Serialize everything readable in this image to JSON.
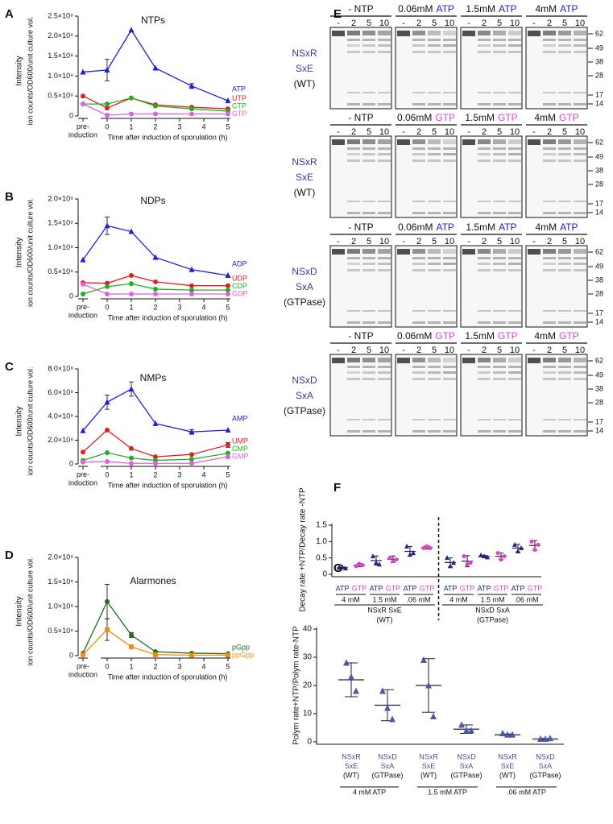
{
  "chart_data": [
    {
      "type": "line",
      "panel_label": "A",
      "title": "NTPs",
      "ylabel": [
        "Intensity",
        "ion counts/OD600/unit culture vol."
      ],
      "xlabel": "Time after induction of sporulation (h)",
      "x": [
        -1,
        0,
        1,
        2,
        3.5,
        5
      ],
      "xlim": [
        -1,
        5
      ],
      "xticks": [
        {
          "value": -1,
          "label": "pre-\ninduction"
        },
        0,
        1,
        2,
        3,
        4,
        5
      ],
      "ylim": [
        0,
        2500000000
      ],
      "yticks": [
        0,
        {
          "value": 500000000,
          "label": "0.5×10⁹"
        },
        {
          "value": 1000000000,
          "label": "1.0×10⁹"
        },
        {
          "value": 1500000000,
          "label": "1.5×10⁹"
        },
        {
          "value": 2000000000,
          "label": "2.0×10⁹"
        },
        {
          "value": 2500000000,
          "label": "2.5×10⁹"
        }
      ],
      "series": [
        {
          "name": "ATP",
          "color": "#1f1fe0",
          "marker": "triangle",
          "values": [
            1100000000,
            1150000000,
            2150000000,
            1200000000,
            750000000,
            380000000
          ],
          "errors": [
            null,
            270000000,
            null,
            null,
            60000000,
            null
          ]
        },
        {
          "name": "UTP",
          "color": "#e02020",
          "marker": "circle",
          "values": [
            500000000,
            200000000,
            450000000,
            280000000,
            220000000,
            180000000
          ]
        },
        {
          "name": "CTP",
          "color": "#22b022",
          "marker": "circle",
          "values": [
            300000000,
            300000000,
            450000000,
            250000000,
            180000000,
            120000000
          ]
        },
        {
          "name": "GTP",
          "color": "#e060e0",
          "marker": "circle",
          "values": [
            300000000,
            20000000,
            50000000,
            50000000,
            50000000,
            50000000
          ]
        }
      ]
    },
    {
      "type": "line",
      "panel_label": "B",
      "title": "NDPs",
      "ylabel": [
        "Intensity",
        "ion counts/OD600/unit culture vol."
      ],
      "xlabel": "Time after induction of sporulation (h)",
      "x": [
        -1,
        0,
        1,
        2,
        3.5,
        5
      ],
      "xlim": [
        -1,
        5
      ],
      "xticks": [
        {
          "value": -1,
          "label": "pre-\ninduction"
        },
        0,
        1,
        2,
        3,
        4,
        5
      ],
      "ylim": [
        0,
        2000000000
      ],
      "yticks": [
        0,
        {
          "value": 500000000,
          "label": "0.5×10⁹"
        },
        {
          "value": 1000000000,
          "label": "1.0×10⁹"
        },
        {
          "value": 1500000000,
          "label": "1.5×10⁹"
        },
        {
          "value": 2000000000,
          "label": "2.0×10⁹"
        }
      ],
      "series": [
        {
          "name": "ADP",
          "color": "#1f1fe0",
          "marker": "triangle",
          "values": [
            750000000,
            1450000000,
            1330000000,
            800000000,
            550000000,
            430000000
          ],
          "errors": [
            null,
            180000000,
            null,
            null,
            null,
            null
          ]
        },
        {
          "name": "UDP",
          "color": "#e02020",
          "marker": "circle",
          "values": [
            280000000,
            270000000,
            430000000,
            300000000,
            220000000,
            220000000
          ]
        },
        {
          "name": "CDP",
          "color": "#22b022",
          "marker": "circle",
          "values": [
            50000000,
            200000000,
            260000000,
            150000000,
            130000000,
            130000000
          ]
        },
        {
          "name": "GDP",
          "color": "#e060e0",
          "marker": "circle",
          "values": [
            250000000,
            50000000,
            50000000,
            50000000,
            50000000,
            50000000
          ]
        }
      ]
    },
    {
      "type": "line",
      "panel_label": "C",
      "title": "NMPs",
      "ylabel": [
        "Intensity",
        "ion counts/OD600/unit culture vol."
      ],
      "xlabel": "Time after induction of sporulation (h)",
      "x": [
        -1,
        0,
        1,
        2,
        3.5,
        5
      ],
      "xlim": [
        -1,
        5
      ],
      "xticks": [
        {
          "value": -1,
          "label": "pre-\ninduction"
        },
        0,
        1,
        2,
        3,
        4,
        5
      ],
      "ylim": [
        0,
        800000000
      ],
      "yticks": [
        0,
        {
          "value": 200000000,
          "label": "2.0×10⁸"
        },
        {
          "value": 400000000,
          "label": "4.0×10⁸"
        },
        {
          "value": 600000000,
          "label": "6.0×10⁸"
        },
        {
          "value": 800000000,
          "label": "8.0×10⁸"
        }
      ],
      "series": [
        {
          "name": "AMP",
          "color": "#1f1fe0",
          "marker": "triangle",
          "values": [
            280000000,
            520000000,
            630000000,
            340000000,
            270000000,
            285000000
          ],
          "errors": [
            null,
            60000000,
            60000000,
            null,
            20000000,
            null
          ]
        },
        {
          "name": "UMP",
          "color": "#e02020",
          "marker": "circle",
          "values": [
            100000000,
            285000000,
            130000000,
            60000000,
            80000000,
            160000000
          ],
          "errors": [
            null,
            null,
            null,
            null,
            null,
            20000000
          ]
        },
        {
          "name": "CMP",
          "color": "#22b022",
          "marker": "circle",
          "values": [
            30000000,
            95000000,
            50000000,
            30000000,
            40000000,
            90000000
          ]
        },
        {
          "name": "GMP",
          "color": "#e060e0",
          "marker": "circle",
          "values": [
            15000000,
            20000000,
            5000000,
            5000000,
            5000000,
            60000000
          ]
        }
      ]
    },
    {
      "type": "line",
      "panel_label": "D",
      "title": "Alarmones",
      "ylabel": [
        "Intensity",
        "ion counts/OD600/unit culture vol."
      ],
      "xlabel": "Time after induction of sporulation (h)",
      "x": [
        -1,
        0,
        1,
        2,
        3.5,
        5
      ],
      "xlim": [
        -1,
        5
      ],
      "xticks": [
        {
          "value": -1,
          "label": "pre-\ninduction"
        },
        0,
        1,
        2,
        3,
        4,
        5
      ],
      "ylim": [
        0,
        200000000
      ],
      "yticks": [
        0,
        {
          "value": 50000000,
          "label": "0.5×10⁸"
        },
        {
          "value": 100000000,
          "label": "1.0×10⁸"
        },
        {
          "value": 150000000,
          "label": "1.5×10⁸"
        },
        {
          "value": 200000000,
          "label": "2.0×10⁸"
        }
      ],
      "series": [
        {
          "name": "pGpp",
          "color": "#1f6b1f",
          "marker": "circle",
          "values": [
            5000000,
            110000000,
            42000000,
            8000000,
            5000000,
            4000000
          ],
          "errors": [
            null,
            35000000,
            5000000,
            null,
            null,
            null
          ]
        },
        {
          "name": "ppGpp",
          "color": "#f08a10",
          "marker": "square",
          "values": [
            2000000,
            53000000,
            18000000,
            2000000,
            1000000,
            1000000
          ],
          "errors": [
            null,
            22000000,
            null,
            null,
            null,
            null
          ]
        }
      ]
    },
    {
      "type": "dot",
      "panel_label": "F",
      "ylabel": "Decay rate +NTP/Decay rate -NTP",
      "ylim": [
        0,
        1.5
      ],
      "yticks": [
        0,
        0.5,
        {
          "value": 1,
          "label": "1.0"
        },
        1.5
      ],
      "categories": [
        "ATP",
        "GTP",
        "ATP",
        "GTP",
        "ATP",
        "GTP",
        "ATP",
        "GTP",
        "ATP",
        "GTP",
        "ATP",
        "GTP"
      ],
      "colors": [
        "#23238f",
        "#e040d0",
        "#23238f",
        "#e040d0",
        "#23238f",
        "#e040d0",
        "#23238f",
        "#e040d0",
        "#23238f",
        "#e040d0",
        "#23238f",
        "#e040d0"
      ],
      "markers": [
        "triangle",
        "circle",
        "triangle",
        "circle",
        "triangle",
        "circle",
        "triangle",
        "circle",
        "triangle",
        "circle",
        "triangle",
        "circle"
      ],
      "sublabels": [
        "4 mM",
        "1.5 mM",
        ".06 mM",
        "4 mM",
        "1.5 mM",
        ".06 mM"
      ],
      "groups": [
        [
          "NSxR SxE",
          "(WT)"
        ],
        [
          "NSxD SxA",
          "(GTPase)"
        ]
      ],
      "divider": true,
      "points": [
        [
          0.2,
          0.22,
          0.18
        ],
        [
          0.25,
          0.32,
          0.28
        ],
        [
          0.55,
          0.35,
          0.3
        ],
        [
          0.5,
          0.4,
          0.45
        ],
        [
          0.85,
          0.6,
          0.65
        ],
        [
          0.8,
          0.85,
          0.8
        ],
        [
          0.5,
          0.25,
          0.35
        ],
        [
          0.55,
          0.3,
          0.35
        ],
        [
          0.58,
          0.55,
          0.52
        ],
        [
          0.65,
          0.45,
          0.55
        ],
        [
          0.9,
          0.7,
          0.8
        ],
        [
          1.0,
          0.75,
          0.9
        ]
      ],
      "means": [
        0.2,
        0.28,
        0.42,
        0.46,
        0.7,
        0.82,
        0.36,
        0.4,
        0.55,
        0.55,
        0.8,
        0.88
      ],
      "sds": [
        0.02,
        0.05,
        0.14,
        0.1,
        0.15,
        0.05,
        0.14,
        0.17,
        0.03,
        0.1,
        0.12,
        0.15
      ]
    },
    {
      "type": "dot",
      "panel_label": "G",
      "ylabel": "Polym rate+NTP/Polym rate-NTP",
      "ylim": [
        0,
        40
      ],
      "yticks": [
        0,
        10,
        20,
        30,
        40
      ],
      "categories": [
        [
          "NSxR",
          "SxE",
          "(WT)"
        ],
        [
          "NSxD",
          "SxA",
          "(GTPase)"
        ],
        [
          "NSxR",
          "SxE",
          "(WT)"
        ],
        [
          "NSxD",
          "SxA",
          "(GTPase)"
        ],
        [
          "NSxR",
          "SxE",
          "(WT)"
        ],
        [
          "NSxD",
          "SxA",
          "(GTPase)"
        ]
      ],
      "color": "#4a5aa8",
      "marker": "triangle",
      "groups": [
        "4 mM ATP",
        "1.5 mM ATP",
        ".06 mM ATP"
      ],
      "points": [
        [
          28,
          23,
          18
        ],
        [
          18,
          12,
          8
        ],
        [
          29,
          20,
          9
        ],
        [
          6,
          4,
          4
        ],
        [
          3,
          2.5,
          2.5
        ],
        [
          1,
          1,
          1.2
        ]
      ],
      "means": [
        22,
        13,
        20,
        4.5,
        2.5,
        1
      ],
      "sds": [
        6,
        5.5,
        9.5,
        1.5,
        0.3,
        0.2
      ]
    }
  ],
  "gel_panel": {
    "panel_label": "E",
    "lanes": [
      "-",
      "2",
      "5",
      "10"
    ],
    "size_markers": [
      62,
      49,
      38,
      28,
      17,
      14
    ],
    "rows": [
      {
        "sample": [
          "NSxR",
          "SxE",
          "(WT)"
        ],
        "conditions": [
          [
            "- NTP"
          ],
          [
            "0.06mM",
            "ATP"
          ],
          [
            "1.5mM",
            "ATP"
          ],
          [
            "4mM",
            "ATP"
          ]
        ]
      },
      {
        "sample": [
          "NSxR",
          "SxE",
          "(WT)"
        ],
        "conditions": [
          [
            "- NTP"
          ],
          [
            "0.06mM",
            "GTP"
          ],
          [
            "1.5mM",
            "GTP"
          ],
          [
            "4mM",
            "GTP"
          ]
        ]
      },
      {
        "sample": [
          "NSxD",
          "SxA",
          "(GTPase)"
        ],
        "conditions": [
          [
            "- NTP"
          ],
          [
            "0.06mM",
            "ATP"
          ],
          [
            "1.5mM",
            "ATP"
          ],
          [
            "4mM",
            "ATP"
          ]
        ]
      },
      {
        "sample": [
          "NSxD",
          "SxA",
          "(GTPase)"
        ],
        "conditions": [
          [
            "- NTP"
          ],
          [
            "0.06mM",
            "GTP"
          ],
          [
            "1.5mM",
            "GTP"
          ],
          [
            "4mM",
            "GTP"
          ]
        ]
      }
    ]
  }
}
